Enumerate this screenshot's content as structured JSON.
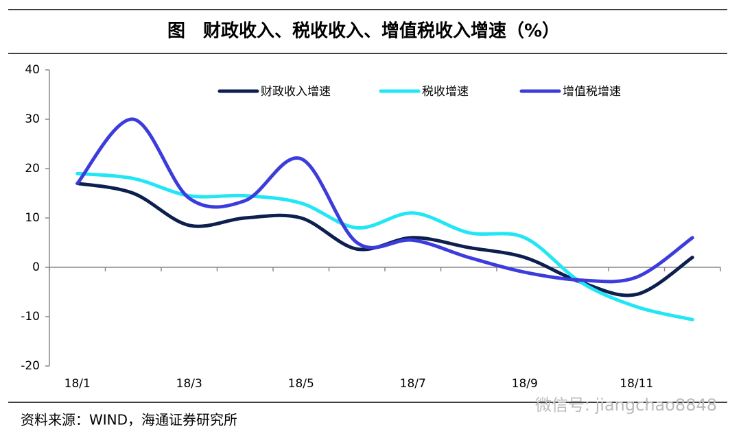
{
  "chart_data": {
    "type": "line",
    "title": "图　财政收入、税收收入、增值税收入增速（%）",
    "source": "资料来源：WIND，海通证券研究所",
    "watermark": "微信号: jiangchao8848",
    "categories": [
      "18/1",
      null,
      "18/3",
      null,
      "18/5",
      null,
      "18/7",
      null,
      "18/9",
      null,
      "18/11",
      null
    ],
    "series": [
      {
        "name": "财政收入增速",
        "color": "#0d1f4f",
        "values": [
          17,
          15,
          8.5,
          10,
          10,
          3.7,
          6,
          4,
          2,
          -3,
          -5.5,
          2
        ]
      },
      {
        "name": "税收增速",
        "color": "#22e6f5",
        "values": [
          19,
          18,
          14.5,
          14.5,
          13,
          8,
          11,
          7,
          6,
          -3,
          -8,
          -10.6
        ]
      },
      {
        "name": "增值税增速",
        "color": "#3c3cdc",
        "values": [
          17,
          30,
          14,
          13.5,
          22,
          5,
          5.5,
          2,
          -1,
          -2.6,
          -2,
          6
        ]
      }
    ],
    "ylim": [
      -20,
      40
    ],
    "yticks": [
      -20,
      -10,
      0,
      10,
      20,
      30,
      40
    ],
    "legend": "top"
  }
}
